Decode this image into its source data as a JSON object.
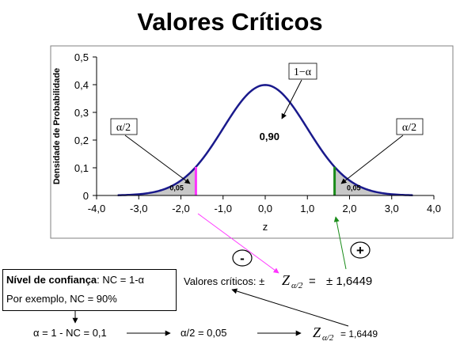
{
  "title": "Valores Críticos",
  "chart_data": {
    "type": "area",
    "distribution": "normal density",
    "x_range": [
      -4.0,
      4.0
    ],
    "y_range": [
      0,
      0.5
    ],
    "xlabel": "z",
    "ylabel": "Densidade de Probabilidade",
    "x_ticks": [
      "-4,0",
      "-3,0",
      "-2,0",
      "-1,0",
      "0,0",
      "1,0",
      "2,0",
      "3,0",
      "4,0"
    ],
    "y_ticks": [
      "0",
      "0,1",
      "0,2",
      "0,3",
      "0,4",
      "0,5"
    ],
    "curve_extent": [
      -3.5,
      3.5
    ],
    "peak_density": 0.399,
    "critical_value": 1.6449,
    "left_tail_label": "0,05",
    "right_tail_label": "0,05",
    "center_label": "0,90",
    "callouts": {
      "left": "α/2",
      "right": "α/2",
      "center": "1−α"
    },
    "grid": false,
    "colors": {
      "curve": "#1a1a8c",
      "tail_fill": "#c8c8c8",
      "left_line": "#ff33ff",
      "right_line": "#1a8c1a",
      "plot_bg": "#ffffff"
    }
  },
  "annotations": {
    "minus_sign": "-",
    "plus_sign": "+",
    "critical_text_prefix": "Valores críticos: ±",
    "z_symbol": "Z",
    "z_subscript": "α/2",
    "critical_equals": "=",
    "critical_value_text": "± 1,6449",
    "confidence_label_bold": "Nível de confiança",
    "confidence_label_rest": ": NC = 1-α",
    "example_text": "Por exemplo, NC = 90%",
    "alpha_eq": "α = 1 - NC = 0,1",
    "half_alpha_eq": "α/2 = 0,05",
    "z_result_value": "= 1,6449"
  }
}
